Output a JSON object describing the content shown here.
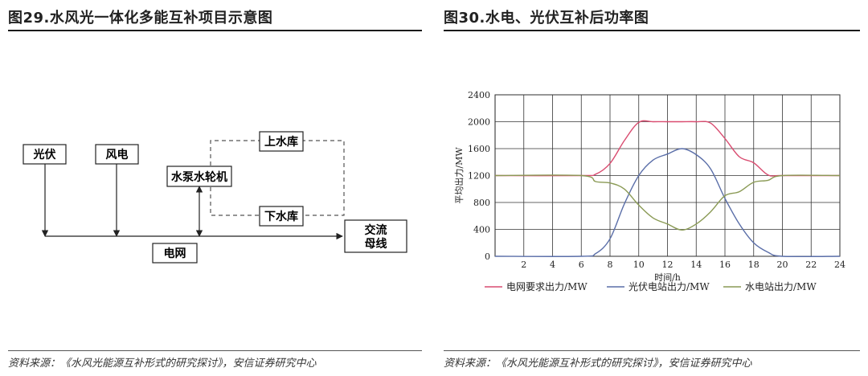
{
  "left_panel": {
    "title": "图29.水风光一体化多能互补项目示意图",
    "source": "资料来源：《水风光能源互补形式的研究探讨》，安信证券研究中心",
    "nodes": {
      "pv": "光伏",
      "wind": "风电",
      "pump_turbine": "水泵水轮机",
      "upper_reservoir": "上水库",
      "lower_reservoir": "下水库",
      "grid": "电网",
      "ac_bus_line1": "交流",
      "ac_bus_line2": "母线"
    }
  },
  "right_panel": {
    "title": "图30.水电、光伏互补后功率图",
    "source": "资料来源：《水风光能源互补形式的研究探讨》，安信证券研究中心"
  },
  "chart_data": {
    "type": "line",
    "title": "",
    "xlabel": "时间/h",
    "ylabel": "平均出力/MW",
    "xlim": [
      0,
      24
    ],
    "ylim": [
      0,
      2400
    ],
    "xticks": [
      2,
      4,
      6,
      8,
      10,
      12,
      14,
      16,
      18,
      20,
      22,
      24
    ],
    "xtick_labels": [
      "2",
      "4",
      "6",
      "8",
      "10",
      "12",
      "14",
      "16",
      "18",
      "20",
      "22",
      "24"
    ],
    "yticks": [
      0,
      400,
      800,
      1200,
      1600,
      2000,
      2400
    ],
    "ytick_labels": [
      "0",
      "400",
      "800",
      "1200",
      "1600",
      "2000",
      "2400"
    ],
    "grid": true,
    "legend_position": "bottom",
    "series": [
      {
        "name": "电网要求出力/MW",
        "color": "#d94c70",
        "x": [
          0,
          6,
          7,
          8,
          9,
          10,
          11,
          12,
          13,
          14,
          15,
          16,
          17,
          18,
          19,
          20,
          24
        ],
        "y": [
          1200,
          1200,
          1220,
          1380,
          1720,
          1990,
          2000,
          2000,
          2000,
          2000,
          1980,
          1750,
          1480,
          1390,
          1210,
          1200,
          1200
        ]
      },
      {
        "name": "光伏电站出力/MW",
        "color": "#5a6ea8",
        "x": [
          0,
          6,
          7,
          8,
          9,
          10,
          11,
          12,
          13,
          14,
          15,
          16,
          17,
          18,
          19,
          20,
          24
        ],
        "y": [
          0,
          0,
          40,
          260,
          780,
          1200,
          1430,
          1520,
          1600,
          1510,
          1300,
          860,
          480,
          200,
          60,
          0,
          0
        ]
      },
      {
        "name": "水电站出力/MW",
        "color": "#8a9a55",
        "x": [
          0,
          6,
          7,
          8,
          9,
          10,
          11,
          12,
          13,
          14,
          15,
          16,
          17,
          18,
          19,
          20,
          24
        ],
        "y": [
          1200,
          1200,
          1110,
          1090,
          1000,
          760,
          570,
          480,
          390,
          480,
          660,
          900,
          960,
          1100,
          1130,
          1200,
          1200
        ]
      }
    ]
  }
}
